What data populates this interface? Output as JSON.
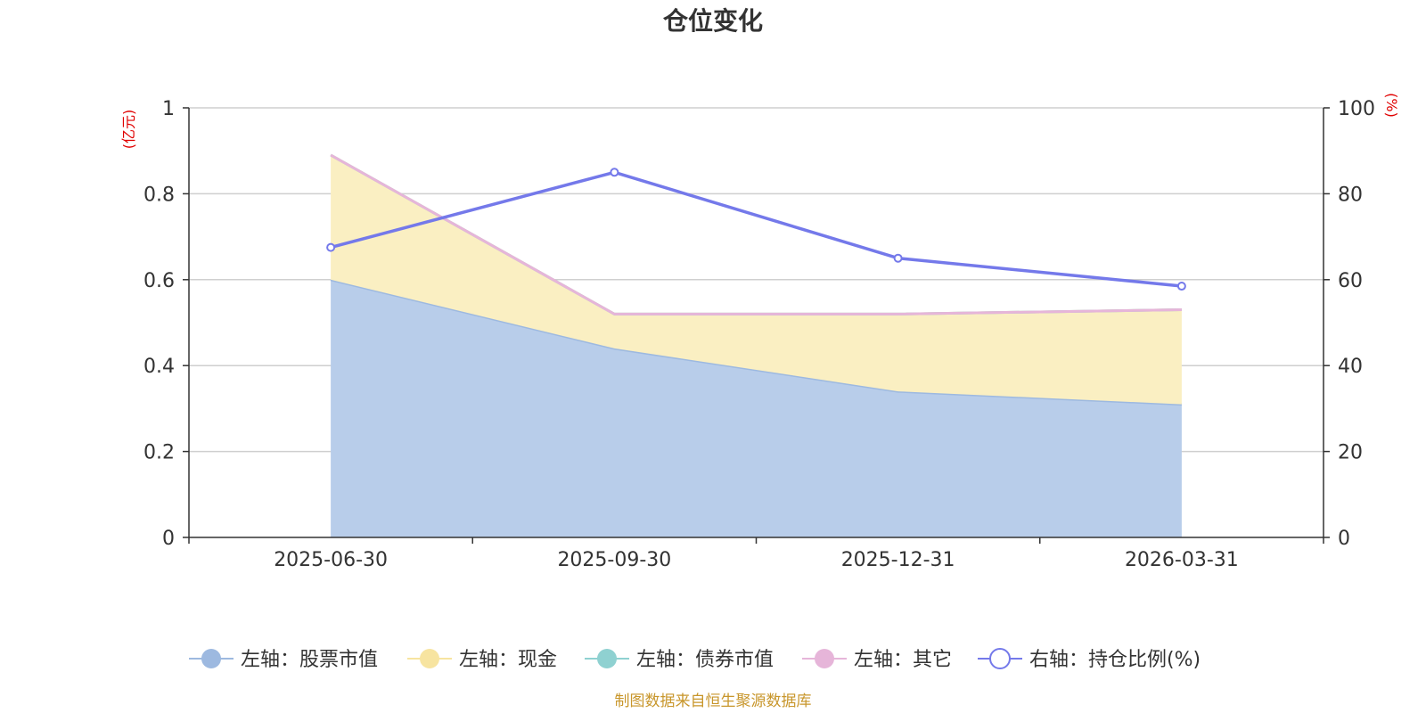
{
  "chart_data": {
    "type": "area",
    "title": "仓位变化",
    "categories": [
      "2025-06-30",
      "2025-09-30",
      "2025-12-31",
      "2026-03-31"
    ],
    "left_axis": {
      "unit": "(亿元)",
      "min": 0,
      "max": 1,
      "ticks": [
        "0",
        "0.2",
        "0.4",
        "0.6",
        "0.8",
        "1"
      ]
    },
    "right_axis": {
      "unit": "(%)",
      "min": 0,
      "max": 100,
      "ticks": [
        "0",
        "20",
        "40",
        "60",
        "80",
        "100"
      ]
    },
    "stacked_series": [
      {
        "name": "左轴：股票市值",
        "axis": "left",
        "values": [
          0.6,
          0.44,
          0.34,
          0.31
        ],
        "color": "#9db9e0",
        "fill": "#b8cdea"
      },
      {
        "name": "左轴：现金",
        "axis": "left",
        "values": [
          0.29,
          0.08,
          0.18,
          0.22
        ],
        "color": "#f7e4a0",
        "fill": "#faefc2"
      },
      {
        "name": "左轴：债券市值",
        "axis": "left",
        "values": [
          0,
          0,
          0,
          0
        ],
        "color": "#8fd1d1",
        "fill": "#8fd1d1"
      },
      {
        "name": "左轴：其它",
        "axis": "left",
        "values": [
          0,
          0,
          0,
          0
        ],
        "color": "#e6b5d9",
        "fill": "#e6b5d9"
      }
    ],
    "line_series": [
      {
        "name": "右轴：持仓比例(%)",
        "axis": "right",
        "values": [
          67.5,
          85,
          65,
          58.5
        ],
        "color": "#7479ea"
      }
    ],
    "grid": true,
    "legend_position": "bottom"
  },
  "source": "制图数据来自恒生聚源数据库"
}
